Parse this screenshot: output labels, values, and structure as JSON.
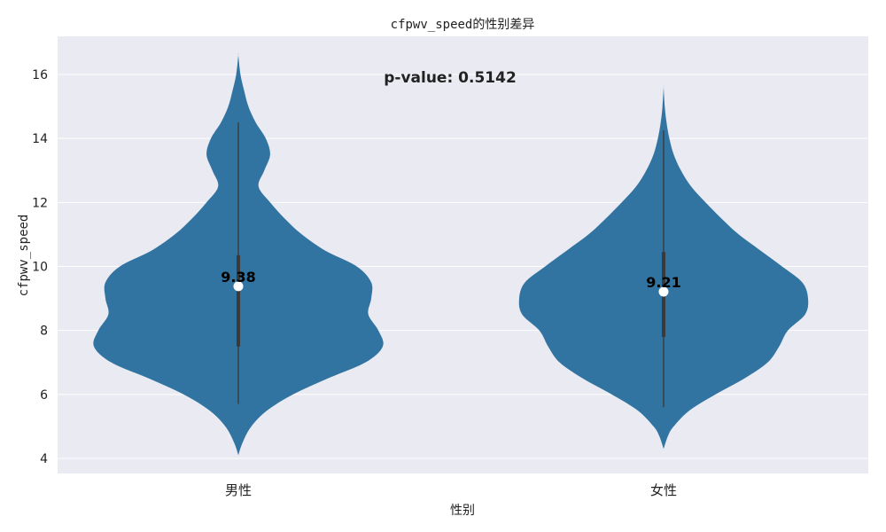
{
  "chart_data": {
    "type": "violin",
    "title": "cfpwv_speed的性别差异",
    "xlabel": "性别",
    "ylabel": "cfpwv_speed",
    "ylim": [
      3.6,
      17.2
    ],
    "yticks": [
      4,
      6,
      8,
      10,
      12,
      14,
      16
    ],
    "grid": true,
    "annotation": "p-value: 0.5142",
    "color": "#3274a1",
    "background": "#eaeaf2",
    "categories": [
      "男性",
      "女性"
    ],
    "series": [
      {
        "category": "男性",
        "median": 9.38,
        "median_label": "9.38",
        "q1": 7.5,
        "q3": 10.35,
        "whisker_low": 5.7,
        "whisker_high": 14.5,
        "min": 4.1,
        "max": 16.6,
        "density": [
          [
            4.1,
            0.0
          ],
          [
            4.5,
            0.03
          ],
          [
            5.0,
            0.09
          ],
          [
            5.5,
            0.2
          ],
          [
            6.0,
            0.38
          ],
          [
            6.5,
            0.62
          ],
          [
            7.0,
            0.88
          ],
          [
            7.5,
            1.0
          ],
          [
            8.0,
            0.97
          ],
          [
            8.5,
            0.9
          ],
          [
            9.0,
            0.92
          ],
          [
            9.5,
            0.92
          ],
          [
            10.0,
            0.82
          ],
          [
            10.5,
            0.6
          ],
          [
            11.0,
            0.44
          ],
          [
            11.5,
            0.32
          ],
          [
            12.0,
            0.22
          ],
          [
            12.5,
            0.14
          ],
          [
            13.0,
            0.18
          ],
          [
            13.5,
            0.22
          ],
          [
            14.0,
            0.19
          ],
          [
            14.5,
            0.12
          ],
          [
            15.0,
            0.07
          ],
          [
            15.5,
            0.04
          ],
          [
            16.0,
            0.015
          ],
          [
            16.6,
            0.0
          ]
        ]
      },
      {
        "category": "女性",
        "median": 9.21,
        "median_label": "9.21",
        "q1": 7.8,
        "q3": 10.45,
        "whisker_low": 5.6,
        "whisker_high": 14.25,
        "min": 4.3,
        "max": 15.6,
        "density": [
          [
            4.3,
            0.0
          ],
          [
            4.7,
            0.03
          ],
          [
            5.0,
            0.07
          ],
          [
            5.5,
            0.18
          ],
          [
            6.0,
            0.36
          ],
          [
            6.5,
            0.56
          ],
          [
            7.0,
            0.72
          ],
          [
            7.5,
            0.8
          ],
          [
            8.0,
            0.86
          ],
          [
            8.5,
            0.98
          ],
          [
            9.0,
            1.0
          ],
          [
            9.5,
            0.96
          ],
          [
            10.0,
            0.82
          ],
          [
            10.5,
            0.67
          ],
          [
            11.0,
            0.52
          ],
          [
            11.5,
            0.4
          ],
          [
            12.0,
            0.29
          ],
          [
            12.5,
            0.19
          ],
          [
            13.0,
            0.12
          ],
          [
            13.5,
            0.07
          ],
          [
            14.0,
            0.04
          ],
          [
            14.5,
            0.02
          ],
          [
            15.0,
            0.008
          ],
          [
            15.6,
            0.0
          ]
        ]
      }
    ]
  }
}
